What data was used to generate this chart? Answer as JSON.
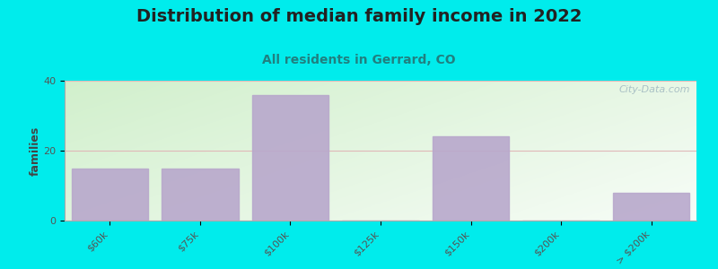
{
  "title": "Distribution of median family income in 2022",
  "subtitle": "All residents in Gerrard, CO",
  "ylabel": "families",
  "categories": [
    "$60k",
    "$75k",
    "$100k",
    "$125k",
    "$150k",
    "$200k",
    "> $200k"
  ],
  "values": [
    15,
    15,
    36,
    0,
    24,
    0,
    8
  ],
  "bar_color": "#b8a8cc",
  "bg_color": "#00ecec",
  "grad_color_topleft": [
    0.82,
    0.94,
    0.8
  ],
  "grad_color_bottomright": [
    0.97,
    0.99,
    0.97
  ],
  "ylim": [
    0,
    40
  ],
  "yticks": [
    0,
    20,
    40
  ],
  "grid_color": "#e0b8b8",
  "title_fontsize": 14,
  "subtitle_fontsize": 10,
  "ylabel_fontsize": 9,
  "tick_fontsize": 8,
  "watermark_text": "City-Data.com",
  "watermark_color": "#a0b8c0"
}
